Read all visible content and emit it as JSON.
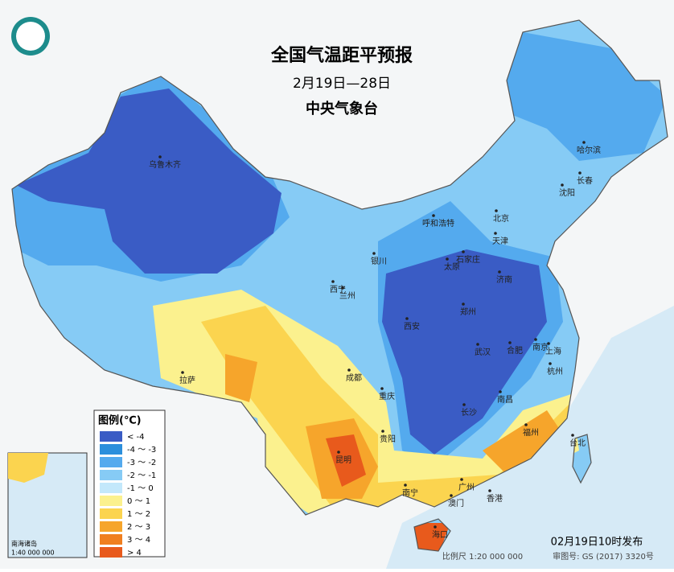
{
  "header": {
    "title": "全国气温距平预报",
    "subtitle": "2月19日—28日",
    "issuer": "中央气象台"
  },
  "legend": {
    "title": "图例(℃)",
    "items": [
      {
        "label": "< -4",
        "color": "#3a5cc5"
      },
      {
        "label": "-4 ～ -3",
        "color": "#2c8fdc"
      },
      {
        "label": "-3 ～ -2",
        "color": "#54aaee"
      },
      {
        "label": "-2 ～ -1",
        "color": "#86cbf5"
      },
      {
        "label": "-1 ～ 0",
        "color": "#c3e8fb"
      },
      {
        "label": "0 ～ 1",
        "color": "#fbf18e"
      },
      {
        "label": "1 ～ 2",
        "color": "#fbd44f"
      },
      {
        "label": "2 ～ 3",
        "color": "#f6a52b"
      },
      {
        "label": "3 ～ 4",
        "color": "#f07f1f"
      },
      {
        "label": "> 4",
        "color": "#e85a1c"
      }
    ]
  },
  "cities": [
    "乌鲁木齐",
    "哈尔滨",
    "长春",
    "沈阳",
    "呼和浩特",
    "北京",
    "天津",
    "石家庄",
    "太原",
    "济南",
    "银川",
    "西宁",
    "兰州",
    "西安",
    "郑州",
    "南京",
    "上海",
    "合肥",
    "武汉",
    "杭州",
    "拉萨",
    "成都",
    "重庆",
    "长沙",
    "南昌",
    "福州",
    "台北",
    "贵阳",
    "昆明",
    "南宁",
    "广州",
    "澳门",
    "香港",
    "海口"
  ],
  "inset": {
    "title": "南海诸岛",
    "scale": "1:40 000 000"
  },
  "footer": {
    "issued": "02月19日10时发布",
    "scale": "比例尺 1:20 000 000",
    "approval": "审图号: GS (2017) 3320号"
  }
}
